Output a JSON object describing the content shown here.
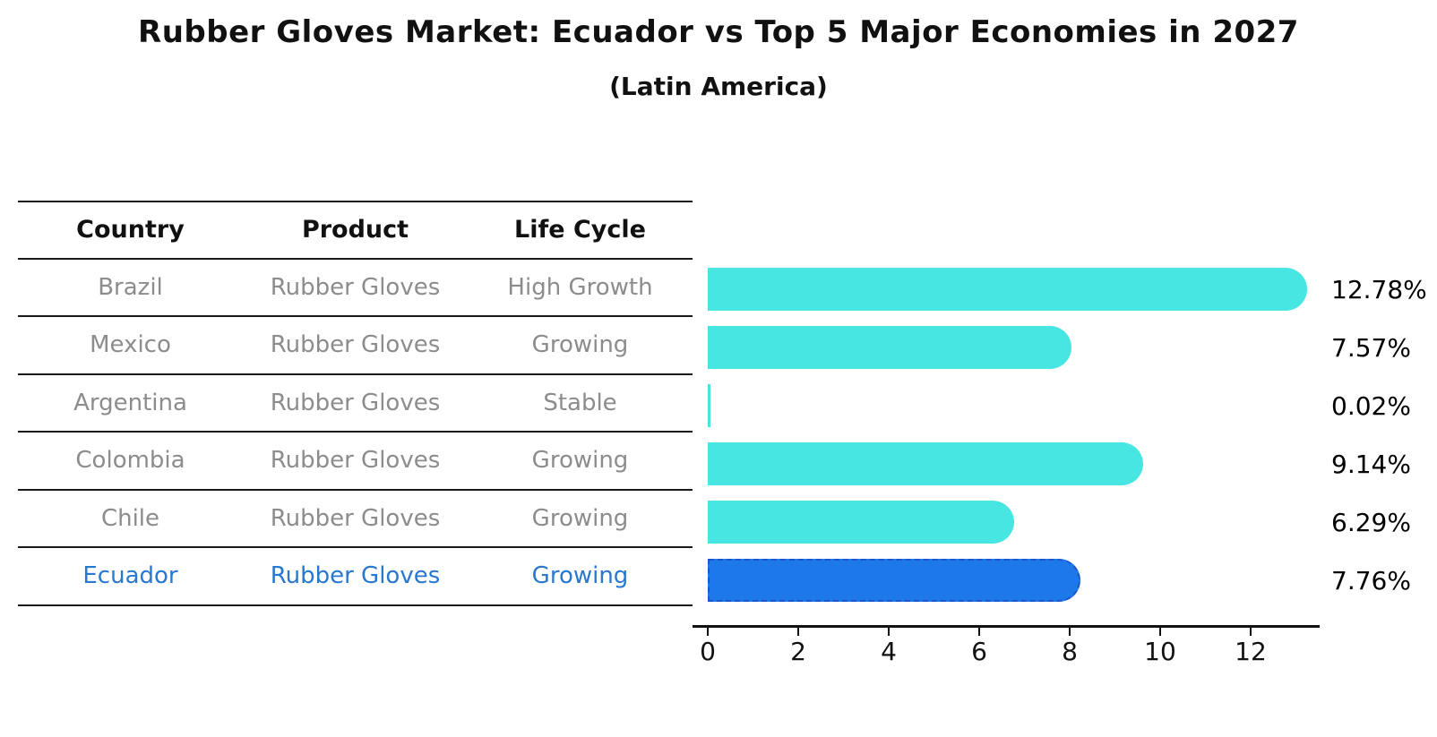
{
  "title": "Rubber Gloves Market: Ecuador vs Top 5 Major Economies in 2027",
  "subtitle": "(Latin America)",
  "table": {
    "headers": [
      "Country",
      "Product",
      "Life Cycle"
    ],
    "rows": [
      {
        "country": "Brazil",
        "product": "Rubber Gloves",
        "life_cycle": "High Growth"
      },
      {
        "country": "Mexico",
        "product": "Rubber Gloves",
        "life_cycle": "Growing"
      },
      {
        "country": "Argentina",
        "product": "Rubber Gloves",
        "life_cycle": "Stable"
      },
      {
        "country": "Colombia",
        "product": "Rubber Gloves",
        "life_cycle": "Growing"
      },
      {
        "country": "Chile",
        "product": "Rubber Gloves",
        "life_cycle": "Growing"
      },
      {
        "country": "Ecuador",
        "product": "Rubber Gloves",
        "life_cycle": "Growing"
      }
    ]
  },
  "chart_data": {
    "type": "bar",
    "orientation": "horizontal",
    "title": "Rubber Gloves Market: Ecuador vs Top 5 Major Economies in 2027",
    "subtitle": "(Latin America)",
    "categories": [
      "Brazil",
      "Mexico",
      "Argentina",
      "Colombia",
      "Chile",
      "Ecuador"
    ],
    "values": [
      12.78,
      7.57,
      0.02,
      9.14,
      6.29,
      7.76
    ],
    "value_labels": [
      "12.78%",
      "7.57%",
      "0.02%",
      "9.14%",
      "6.29%",
      "7.76%"
    ],
    "x_ticks": [
      0,
      2,
      4,
      6,
      8,
      10,
      12
    ],
    "xlim": [
      0,
      13.8
    ],
    "grid": false,
    "legend": false,
    "highlight_index": 5,
    "bar_color": "#47E6E2",
    "highlight_color": "#1D78E9",
    "highlight_border_color": "#1E55CC",
    "highlight_text_color": "#2878CE"
  }
}
